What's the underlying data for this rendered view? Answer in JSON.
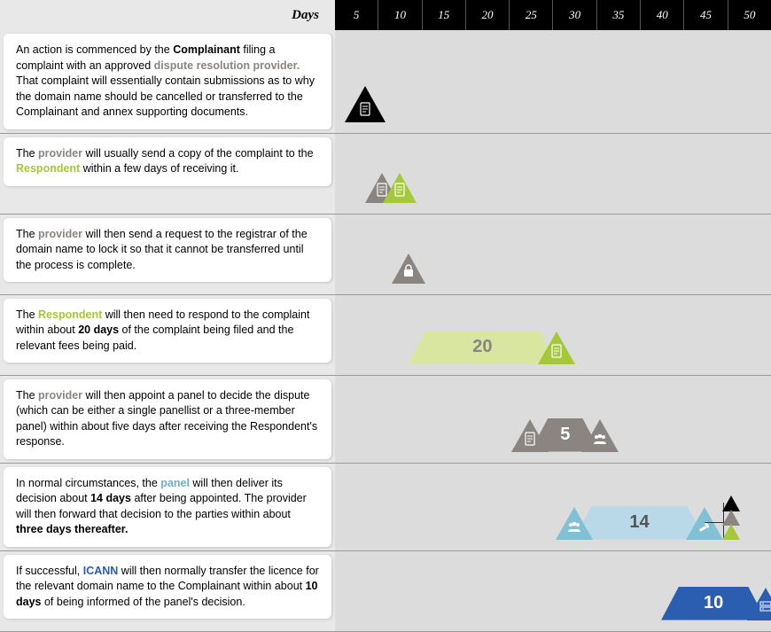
{
  "colors": {
    "black": "#000000",
    "grey": "#8a8580",
    "green": "#a5c83a",
    "greenLight": "#d8e6a0",
    "teal": "#82c0d6",
    "blueLight": "#b9d8e8",
    "blue": "#2b5db0",
    "providerText": "#8a8580",
    "respondentText": "#a5c83a",
    "panelText": "#6db1c9",
    "icannText": "#2b5db0"
  },
  "header": {
    "label": "Days",
    "ticks": [
      "5",
      "10",
      "15",
      "20",
      "25",
      "30",
      "35",
      "40",
      "45",
      "50"
    ],
    "tickWidth": 49.2,
    "totalDays": 50
  },
  "typography": {
    "card_fontsize": 12.5,
    "duration_fontsize": 20,
    "header_fontsize": 13
  },
  "rows": [
    {
      "id": "r1",
      "text_html": "An action is commenced by the <span class='txt-bold'>Complainant</span> filing a complaint with an approved <span class='txt-provider'>dispute resolution provider.</span> That complaint will essentially contain submissions as to why the domain name should be cancelled or transferred to the Complainant and annex supporting documents.",
      "markers": [
        {
          "type": "triangle",
          "day": 3,
          "size": "large",
          "color": "black",
          "icon": "document"
        }
      ]
    },
    {
      "id": "r2",
      "text_html": "The <span class='txt-provider'>provider</span> will usually send a copy of the complaint to the <span class='txt-respondent'>Respondent</span> within a few days of receiving it.",
      "markers": [
        {
          "type": "triangle",
          "day": 5,
          "size": "med",
          "color": "grey",
          "icon": "document"
        },
        {
          "type": "triangle",
          "day": 7,
          "size": "med",
          "color": "green",
          "icon": "document"
        }
      ]
    },
    {
      "id": "r3",
      "text_html": "The <span class='txt-provider'>provider</span> will then send a request to the registrar of the domain name to lock it so that it cannot be transferred until the process is complete.",
      "markers": [
        {
          "type": "triangle",
          "day": 8,
          "size": "med",
          "color": "grey",
          "icon": "lock"
        }
      ]
    },
    {
      "id": "r4",
      "text_html": "The <span class='txt-respondent'>Respondent</span> will then need to respond to the complaint within about <span class='txt-bold'>20 days</span> of the complaint being filed and the relevant fees being paid.",
      "bar": {
        "startDay": 8,
        "endDay": 25,
        "fillColor": "greenLight",
        "duration": "20",
        "durationColor": "#8a8580",
        "rightTri": {
          "color": "green",
          "icon": "document"
        }
      }
    },
    {
      "id": "r5",
      "text_html": "The <span class='txt-provider'>provider</span> will then appoint a panel to decide the dispute (which can be either a single panellist or a three-member panel) within about five days after receiving the Respondent's response.",
      "bar": {
        "startDay": 22,
        "endDay": 30,
        "fillColor": "grey",
        "duration": "5",
        "durationColor": "#ffffff",
        "leftTri": {
          "color": "grey",
          "icon": "document"
        },
        "rightTri": {
          "color": "grey",
          "icon": "panel"
        }
      }
    },
    {
      "id": "r6",
      "text_html": "In normal circumstances, the <span class='txt-panel'>panel</span> will then deliver its decision about <span class='txt-bold'>14 days</span> after being appointed. The provider will then forward that decision to the parties within about <span class='txt-bold'>three days thereafter.</span>",
      "bar": {
        "startDay": 27,
        "endDay": 42,
        "fillColor": "blueLight",
        "duration": "14",
        "durationColor": "#555",
        "leftTri": {
          "color": "teal",
          "icon": "panel"
        },
        "rightTri": {
          "color": "teal",
          "icon": "gavel"
        }
      },
      "stack": {
        "day": 45,
        "tris": [
          {
            "color": "black",
            "offsetY": 32
          },
          {
            "color": "grey",
            "offsetY": 16
          },
          {
            "color": "green",
            "offsetY": 0
          }
        ],
        "connectorFromDay": 42
      }
    },
    {
      "id": "r7",
      "text_html": "If successful, <span class='txt-icann'>ICANN</span> will then normally transfer the licence for the relevant domain name to the Complainant within about <span class='txt-bold'>10 days</span> of being informed of the panel's decision.",
      "bar": {
        "startDay": 37,
        "endDay": 49,
        "fillColor": "blue",
        "duration": "10",
        "durationColor": "#ffffff",
        "rightTri": {
          "color": "blue",
          "icon": "server"
        }
      }
    }
  ]
}
